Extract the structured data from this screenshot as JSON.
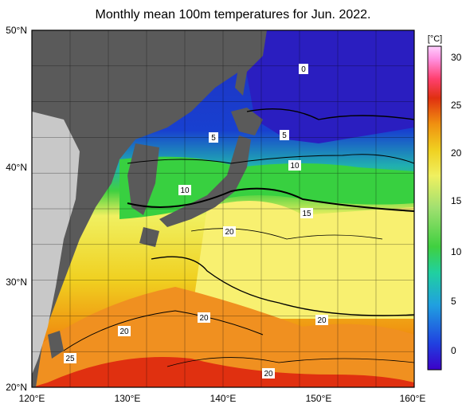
{
  "title": "Monthly mean 100m temperatures for Jun. 2022.",
  "map": {
    "lat_labels": [
      "50°N",
      "40°N",
      "30°N",
      "20°N"
    ],
    "lon_labels": [
      "120°E",
      "130°E",
      "140°E",
      "150°E",
      "160°E"
    ],
    "contour_labels": [
      "0",
      "5",
      "5",
      "10",
      "10",
      "15",
      "20",
      "20",
      "20",
      "20",
      "20",
      "25"
    ]
  },
  "colorbar": {
    "unit": "[°C]",
    "ticks": [
      "30",
      "25",
      "20",
      "15",
      "10",
      "5",
      "0"
    ],
    "range": [
      -2,
      32
    ],
    "colors": [
      "#3c00c8",
      "#2040e0",
      "#20a0e0",
      "#20d0a0",
      "#40d040",
      "#a0e070",
      "#f0f060",
      "#f0d020",
      "#f09010",
      "#e03010",
      "#ff4070",
      "#ff90e0",
      "#ffd0ff"
    ]
  },
  "land_color": "#5a5a5a",
  "sea_ice_or_mask_color": "#c8c8c8"
}
